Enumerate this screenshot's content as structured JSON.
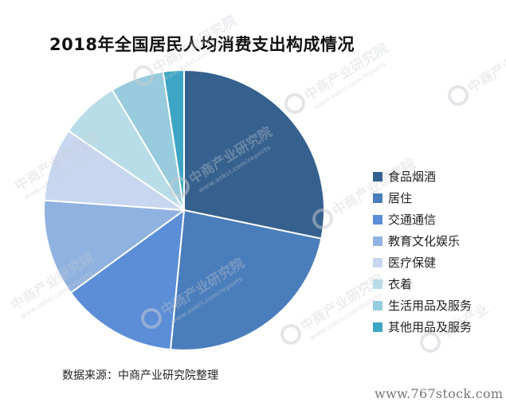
{
  "chart_data": {
    "type": "pie",
    "title": "2018年全国居民人均消费支出构成情况",
    "categories": [
      "食品烟酒",
      "居住",
      "交通通信",
      "教育文化娱乐",
      "医疗保健",
      "衣着",
      "生活用品及服务",
      "其他用品及服务"
    ],
    "values": [
      28.4,
      23.4,
      13.5,
      11.2,
      8.5,
      6.9,
      6.2,
      2.4
    ],
    "colors": [
      "#36618F",
      "#4A7DBB",
      "#5B8ED6",
      "#90B2E0",
      "#C8D7EF",
      "#B9DDE8",
      "#97CBDD",
      "#3DA6C4"
    ],
    "legend_position": "right",
    "start": "top",
    "direction": "clockwise"
  },
  "source": "数据来源：中商产业研究院整理",
  "site": "www.767stock.com"
}
